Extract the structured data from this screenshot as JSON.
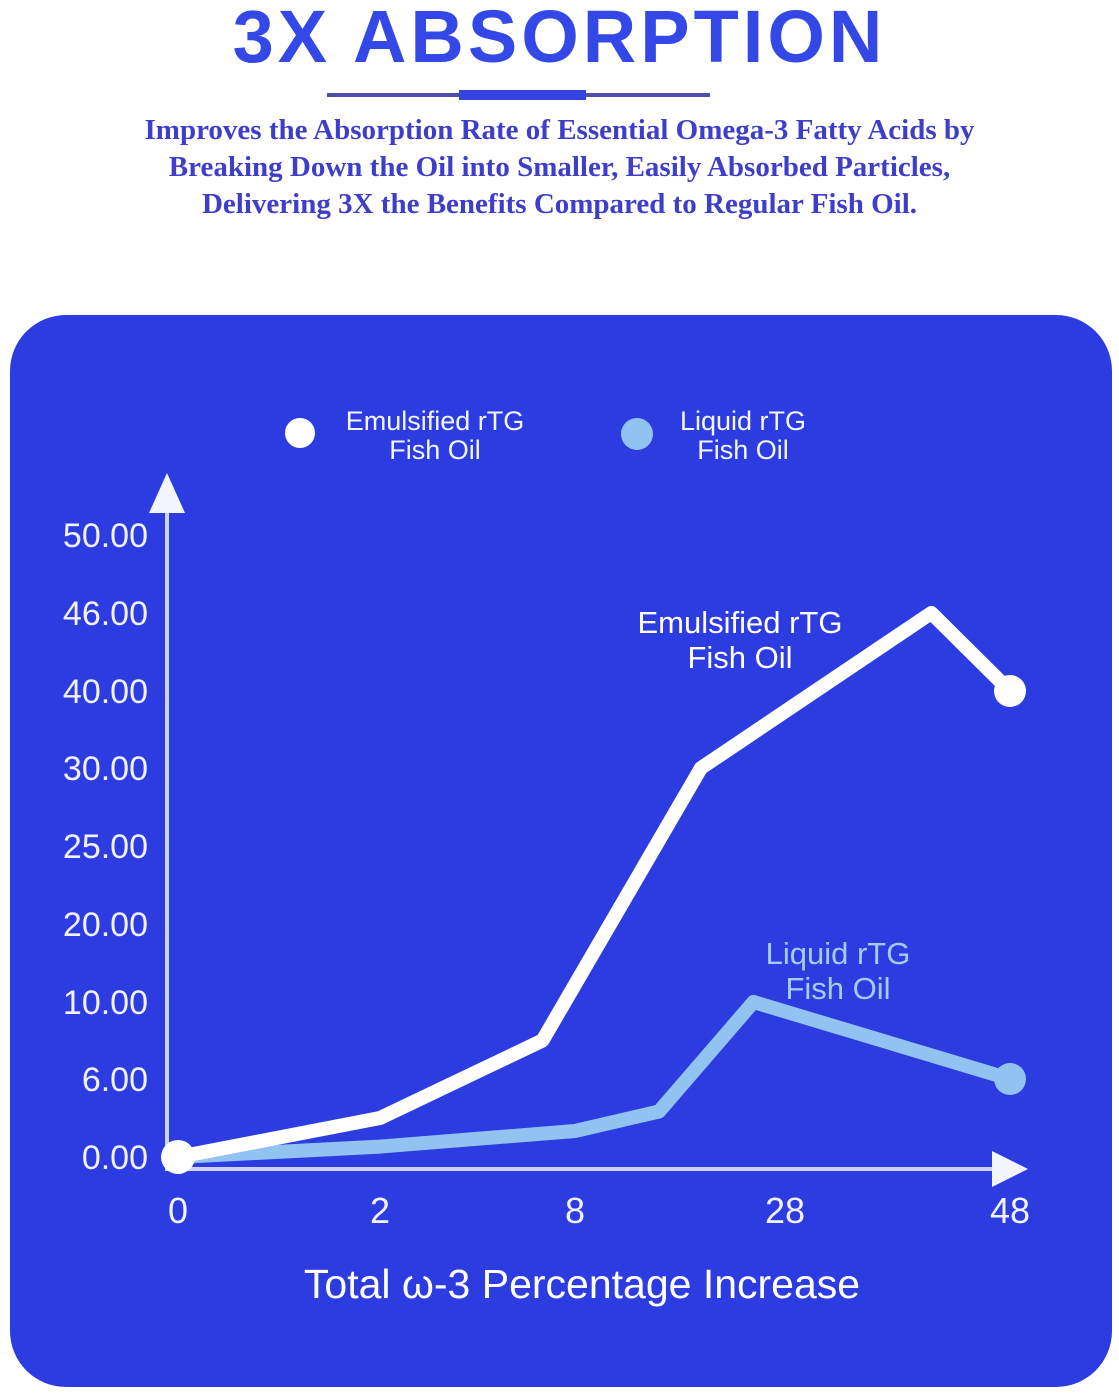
{
  "header": {
    "title": "3X ABSORPTION",
    "subtitle_lines": [
      "Improves the Absorption Rate of Essential Omega-3 Fatty Acids by",
      "Breaking Down the Oil into Smaller, Easily Absorbed Particles,",
      "Delivering 3X the Benefits Compared to Regular Fish Oil."
    ]
  },
  "colors": {
    "page_bg": "#ffffff",
    "panel": "#2c3ce1",
    "title": "#3448e8",
    "subtitle": "#3e3ecb",
    "underline_thin": "#4e4da8",
    "underline_thick": "#3443dd",
    "axis_line": "#ccd3f3",
    "arrow_fill": "#f2f4fe",
    "tick_text": "#f0f2fe",
    "emulsified_series": "#ffffff",
    "liquid_series": "#92c2ef",
    "liquid_label_text": "#a5cbf1",
    "legend_text": "#f4f6ff"
  },
  "legend": {
    "items": [
      {
        "marker": "white-dot",
        "marker_color": "#ffffff",
        "line1": "Emulsified rTG",
        "line2": "Fish Oil"
      },
      {
        "marker": "light-blue-dot",
        "marker_color": "#92c2ef",
        "line1": "Liquid rTG",
        "line2": "Fish Oil"
      }
    ]
  },
  "chart_data": {
    "type": "line",
    "title": "",
    "xlabel": "Total ω-3 Percentage Increase",
    "ylabel": "",
    "grid": false,
    "legend_position": "top",
    "axis_note": "both axes are non-linear: tick labels are evenly spaced ordinal positions",
    "x_ticks": [
      0,
      2,
      8,
      28,
      48
    ],
    "x_tick_labels": [
      "0",
      "2",
      "8",
      "28",
      "48"
    ],
    "y_ticks": [
      0,
      6,
      10,
      20,
      25,
      30,
      40,
      46,
      50
    ],
    "y_tick_labels": [
      "0.00",
      "6.00",
      "10.00",
      "20.00",
      "25.00",
      "30.00",
      "40.00",
      "46.00",
      "50.00"
    ],
    "xlim": [
      0,
      48
    ],
    "ylim": [
      0,
      50
    ],
    "series": [
      {
        "name": "Emulsified rTG Fish Oil",
        "color": "#ffffff",
        "points": [
          [
            0,
            0
          ],
          [
            2,
            3
          ],
          [
            7,
            8
          ],
          [
            20,
            30
          ],
          [
            41,
            46
          ],
          [
            48,
            40
          ]
        ],
        "start_dot": true,
        "end_dot": true,
        "label_lines": [
          "Emulsified rTG",
          "Fish Oil"
        ]
      },
      {
        "name": "Liquid rTG Fish Oil",
        "color": "#92c2ef",
        "points": [
          [
            0,
            0
          ],
          [
            2,
            0.8
          ],
          [
            8,
            2
          ],
          [
            16,
            3.5
          ],
          [
            25,
            10
          ],
          [
            48,
            6
          ]
        ],
        "start_dot": false,
        "end_dot": true,
        "label_lines": [
          "Liquid rTG",
          "Fish Oil"
        ]
      }
    ]
  }
}
